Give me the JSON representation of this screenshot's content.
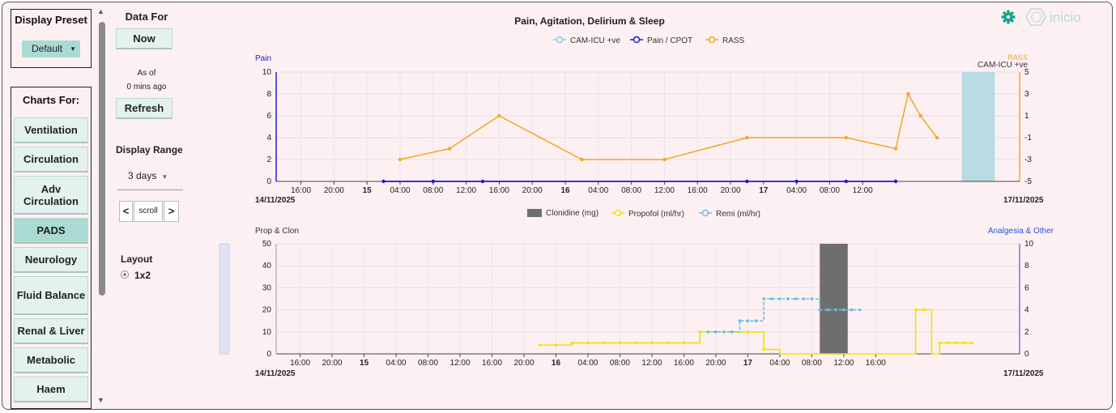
{
  "sidebar": {
    "preset_title": "Display Preset",
    "preset_value": "Default",
    "charts_title": "Charts For:",
    "items": [
      {
        "label": "Ventilation",
        "active": false
      },
      {
        "label": "Circulation",
        "active": false
      },
      {
        "label": "Adv Circulation",
        "active": false
      },
      {
        "label": "PADS",
        "active": true
      },
      {
        "label": "Neurology",
        "active": false
      },
      {
        "label": "Fluid Balance",
        "active": false
      },
      {
        "label": "Renal & Liver",
        "active": false
      },
      {
        "label": "Metabolic",
        "active": false
      },
      {
        "label": "Haem",
        "active": false
      }
    ]
  },
  "controls": {
    "data_for_label": "Data For",
    "now_button": "Now",
    "as_of_label": "As of",
    "as_of_value": "0 mins ago",
    "refresh_button": "Refresh",
    "display_range_label": "Display Range",
    "display_range_value": "3 days",
    "scroll_left": "<",
    "scroll_label": "scroll",
    "scroll_right": ">",
    "layout_label": "Layout",
    "layout_option": "1x2"
  },
  "header": {
    "logo_text": "inicio",
    "gear_icon": "gear-icon",
    "accent": "#17a589"
  },
  "chart_data": [
    {
      "type": "line",
      "title": "Pain, Agitation, Delirium & Sleep",
      "ylabel_left": "Pain",
      "ylabel_right": "RASS",
      "ylabel_right2": "CAM-ICU +ve",
      "ylim_left": [
        0,
        10
      ],
      "ylim_right": [
        -5,
        5
      ],
      "y_ticks_left": [
        "0",
        "2",
        "4",
        "6",
        "8",
        "10"
      ],
      "y_ticks_right": [
        "-5",
        "-3",
        "-1",
        "1",
        "3",
        "5"
      ],
      "x_ticks": [
        {
          "label": "16:00",
          "bold": false
        },
        {
          "label": "20:00",
          "bold": false
        },
        {
          "label": "15",
          "bold": true
        },
        {
          "label": "04:00",
          "bold": false
        },
        {
          "label": "08:00",
          "bold": false
        },
        {
          "label": "12:00",
          "bold": false
        },
        {
          "label": "16:00",
          "bold": false
        },
        {
          "label": "20:00",
          "bold": false
        },
        {
          "label": "16",
          "bold": true
        },
        {
          "label": "04:00",
          "bold": false
        },
        {
          "label": "08:00",
          "bold": false
        },
        {
          "label": "12:00",
          "bold": false
        },
        {
          "label": "16:00",
          "bold": false
        },
        {
          "label": "20:00",
          "bold": false
        },
        {
          "label": "17",
          "bold": true
        },
        {
          "label": "04:00",
          "bold": false
        },
        {
          "label": "08:00",
          "bold": false
        },
        {
          "label": "12:00",
          "bold": false
        }
      ],
      "date_start": "14/11/2025",
      "date_end": "17/11/2025",
      "legend": [
        "CAM-ICU +ve",
        "Pain / CPOT",
        "RASS"
      ],
      "colors": {
        "cam": "#8ec8e8",
        "pain": "#1a1acc",
        "rass": "#f5a623",
        "shade": "#b8dbe4"
      },
      "series": [
        {
          "name": "RASS",
          "axis": "right",
          "x_hours": [
            28,
            34,
            40,
            50,
            60,
            70,
            82,
            88,
            89.5,
            91,
            93
          ],
          "values": [
            -3,
            -2,
            1,
            -3,
            -3,
            -1,
            -1,
            -2,
            3,
            1,
            -1
          ]
        },
        {
          "name": "Pain / CPOT",
          "axis": "left",
          "x_hours": [
            26,
            32,
            38,
            70,
            76,
            82,
            88
          ],
          "values": [
            0,
            0,
            0,
            0,
            0,
            0,
            0
          ]
        }
      ],
      "shade_hours": [
        96,
        100
      ],
      "x_range_hours": [
        13,
        103
      ]
    },
    {
      "type": "line",
      "title": "",
      "ylabel_left": "Prop & Clon",
      "ylabel_right": "Analgesia & Other",
      "ylim_left": [
        0,
        50
      ],
      "ylim_right": [
        0,
        10
      ],
      "y_ticks_left": [
        "0",
        "10",
        "20",
        "30",
        "40",
        "50"
      ],
      "y_ticks_right": [
        "0",
        "2",
        "4",
        "6",
        "8",
        "10"
      ],
      "x_ticks": [
        {
          "label": "16:00",
          "bold": false
        },
        {
          "label": "20:00",
          "bold": false
        },
        {
          "label": "15",
          "bold": true
        },
        {
          "label": "04:00",
          "bold": false
        },
        {
          "label": "08:00",
          "bold": false
        },
        {
          "label": "12:00",
          "bold": false
        },
        {
          "label": "16:00",
          "bold": false
        },
        {
          "label": "20:00",
          "bold": false
        },
        {
          "label": "16",
          "bold": true
        },
        {
          "label": "04:00",
          "bold": false
        },
        {
          "label": "08:00",
          "bold": false
        },
        {
          "label": "12:00",
          "bold": false
        },
        {
          "label": "16:00",
          "bold": false
        },
        {
          "label": "20:00",
          "bold": false
        },
        {
          "label": "17",
          "bold": true
        },
        {
          "label": "04:00",
          "bold": false
        },
        {
          "label": "08:00",
          "bold": false
        },
        {
          "label": "12:00",
          "bold": false
        },
        {
          "label": "16:00",
          "bold": false
        }
      ],
      "date_start": "14/11/2025",
      "date_end": "17/11/2025",
      "legend": [
        "Clonidine (mg)",
        "Propofol (ml/hr)",
        "Remi (ml/hr)"
      ],
      "colors": {
        "clonidine": "#6e6e6e",
        "propofol": "#f2e200",
        "remi": "#6bbfe0"
      },
      "clonidine_bar_hours": [
        81,
        84.5
      ],
      "series": [
        {
          "name": "Propofol (ml/hr)",
          "axis": "left",
          "type": "step",
          "x_hours": [
            46,
            48,
            50,
            52,
            54,
            56,
            58,
            60,
            62,
            64,
            66,
            68,
            70,
            72,
            74,
            76,
            78,
            80,
            81,
            82,
            84,
            86,
            87,
            88,
            89,
            90,
            91,
            92,
            93,
            94,
            95,
            96,
            97,
            98,
            99,
            100
          ],
          "values": [
            4,
            4,
            5,
            5,
            5,
            5,
            5,
            5,
            5,
            5,
            10,
            10,
            10,
            10,
            2,
            0,
            0,
            0,
            0,
            0,
            0,
            0,
            0,
            0,
            0,
            0,
            0,
            0,
            20,
            20,
            0,
            5,
            5,
            5,
            5,
            5
          ]
        },
        {
          "name": "Remi (ml/hr)",
          "axis": "right",
          "type": "step",
          "x_hours": [
            67,
            68,
            69,
            70,
            71,
            72,
            73,
            74,
            75,
            76,
            77,
            78,
            79,
            80,
            81,
            82,
            83,
            84,
            85,
            86
          ],
          "values": [
            2,
            2,
            2,
            2,
            3,
            3,
            3,
            5,
            5,
            5,
            5,
            5,
            5,
            5,
            4,
            4,
            4,
            4,
            4,
            4
          ]
        }
      ],
      "x_range_hours": [
        13,
        106
      ]
    }
  ]
}
